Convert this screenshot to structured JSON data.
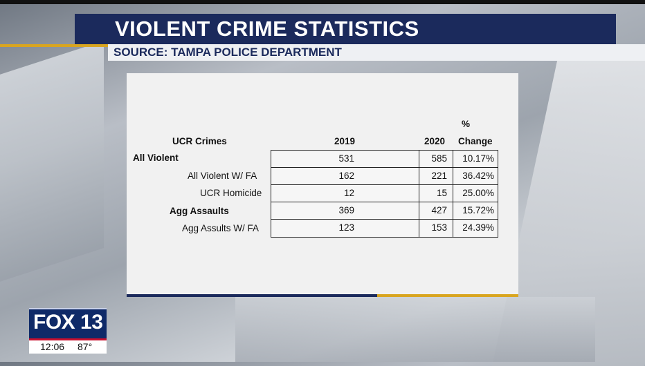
{
  "graphic": {
    "title": "VIOLENT CRIME STATISTICS",
    "source": "SOURCE: TAMPA POLICE DEPARTMENT"
  },
  "table": {
    "headers": {
      "crimes": "UCR Crimes",
      "y2019": "2019",
      "y2020": "2020",
      "pct_top": "%",
      "pct_bottom": "Change"
    },
    "rows": [
      {
        "label": "All Violent",
        "bold": true,
        "v2019": "531",
        "v2020": "585",
        "change": "10.17%"
      },
      {
        "label": "All Violent W/ FA",
        "bold": false,
        "v2019": "162",
        "v2020": "221",
        "change": "36.42%"
      },
      {
        "label": "UCR Homicide",
        "bold": false,
        "v2019": "12",
        "v2020": "15",
        "change": "25.00%"
      },
      {
        "label": "Agg Assaults",
        "bold": true,
        "v2019": "369",
        "v2020": "427",
        "change": "15.72%"
      },
      {
        "label": "Agg Assults W/ FA",
        "bold": false,
        "v2019": "123",
        "v2020": "153",
        "change": "24.39%"
      }
    ]
  },
  "bug": {
    "station": "FOX 13",
    "time": "12:06",
    "temperature": "87°"
  },
  "colors": {
    "navy": "#1b2a5c",
    "gold": "#d9a520",
    "red": "#c8102e"
  }
}
